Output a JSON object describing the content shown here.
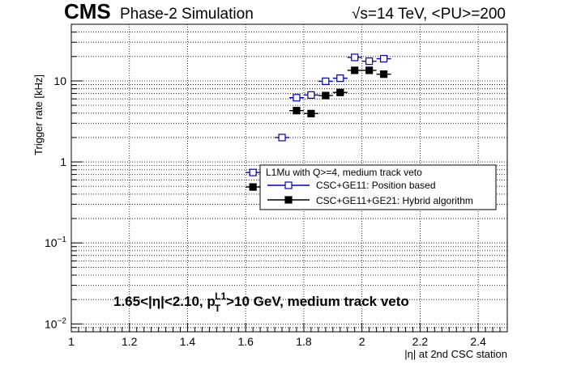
{
  "header": {
    "experiment": "CMS",
    "subtitle": "Phase-2 Simulation",
    "energy_label": "√s=14 TeV, <PU>=200"
  },
  "annotation": {
    "prefix": "1.65<|η|<2.10, p",
    "sub": "T",
    "sup": "L1",
    "suffix": ">10 GeV, medium track veto"
  },
  "legend": {
    "header": "L1Mu with Q>=4, medium track veto",
    "entries": [
      {
        "label": "CSC+GE11: Position based"
      },
      {
        "label": "CSC+GE11+GE21: Hybrid algorithm"
      }
    ]
  },
  "chart_data": {
    "type": "scatter",
    "xlabel": "|η| at 2nd CSC station",
    "ylabel": "Trigger rate [kHz]",
    "xlim": [
      1.0,
      2.5
    ],
    "ylim": [
      0.008,
      50
    ],
    "yscale": "log",
    "grid": true,
    "legend_position": "right-middle",
    "x_ticks": [
      1,
      1.2,
      1.4,
      1.6,
      1.8,
      2,
      2.2,
      2.4
    ],
    "x_tick_labels": [
      "1",
      "1.2",
      "1.4",
      "1.6",
      "1.8",
      "2",
      "2.2",
      "2.4"
    ],
    "y_ticks": [
      0.01,
      0.1,
      1,
      10
    ],
    "y_tick_labels": [
      {
        "base": "10",
        "exp": "−2"
      },
      {
        "base": "10",
        "exp": "−1"
      },
      {
        "base": "1",
        "exp": ""
      },
      {
        "base": "10",
        "exp": ""
      }
    ],
    "series": [
      {
        "color": "#0000cc",
        "marker": "open-square",
        "x": [
          1.625,
          1.675,
          1.725,
          1.775,
          1.825,
          1.875,
          1.925,
          1.975,
          2.025,
          2.075
        ],
        "xerr": 0.025,
        "y": [
          0.74,
          0.74,
          2.0,
          6.2,
          6.7,
          9.9,
          10.8,
          19.5,
          17.5,
          18.8
        ]
      },
      {
        "color": "#000000",
        "marker": "filled-square",
        "x": [
          1.625,
          1.675,
          1.725,
          1.775,
          1.825,
          1.875,
          1.925,
          1.975,
          2.025,
          2.075
        ],
        "xerr": 0.025,
        "y": [
          0.49,
          0.53,
          0.83,
          4.3,
          3.95,
          6.6,
          7.2,
          13.5,
          13.5,
          12.1
        ]
      }
    ]
  }
}
